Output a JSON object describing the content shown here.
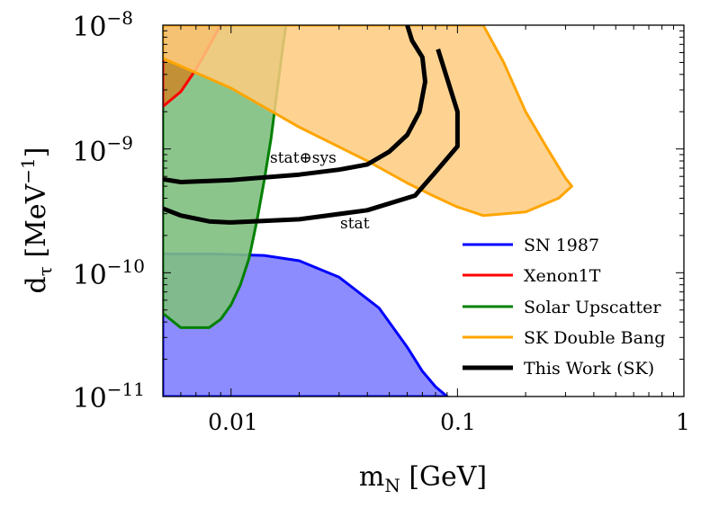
{
  "chart_data": {
    "type": "area",
    "xscale": "log",
    "yscale": "log",
    "xlim": [
      0.005,
      1
    ],
    "ylim": [
      1e-11,
      1e-08
    ],
    "xlabel": {
      "main": "m",
      "sub": "N",
      "unit": " [GeV]"
    },
    "ylabel": {
      "main": "d",
      "sub": "τ",
      "unit": " [MeV",
      "sup": "−1",
      "close": "]"
    },
    "x_ticks": [
      {
        "value": 0.01,
        "label": "0.01"
      },
      {
        "value": 0.1,
        "label": "0.1"
      },
      {
        "value": 1,
        "label": "1"
      }
    ],
    "y_ticks": [
      {
        "value": 1e-08,
        "base": "10",
        "exp": "−8"
      },
      {
        "value": 1e-09,
        "base": "10",
        "exp": "−9"
      },
      {
        "value": 1e-10,
        "base": "10",
        "exp": "−10"
      },
      {
        "value": 1e-11,
        "base": "10",
        "exp": "−11"
      }
    ],
    "legend_position": "bottom-right",
    "series": [
      {
        "name": "SN 1987",
        "kind": "region",
        "color": "#0000ff",
        "fill": "#7f7ffe",
        "points": [
          [
            0.005,
            1e-11
          ],
          [
            0.005,
            1.42e-10
          ],
          [
            0.008,
            1.42e-10
          ],
          [
            0.014,
            1.38e-10
          ],
          [
            0.02,
            1.25e-10
          ],
          [
            0.03,
            9.2e-11
          ],
          [
            0.045,
            5.2e-11
          ],
          [
            0.06,
            2.5e-11
          ],
          [
            0.07,
            1.6e-11
          ],
          [
            0.08,
            1.2e-11
          ],
          [
            0.09,
            1e-11
          ]
        ]
      },
      {
        "name": "Xenon1T",
        "kind": "region",
        "color": "#ff0000",
        "fill": "#c88a2c",
        "points": [
          [
            0.005,
            1e-08
          ],
          [
            0.005,
            2.2e-09
          ],
          [
            0.006,
            2.9e-09
          ],
          [
            0.007,
            4.4e-09
          ],
          [
            0.008,
            6.8e-09
          ],
          [
            0.009,
            1e-08
          ]
        ]
      },
      {
        "name": "Solar Upscatter",
        "kind": "region",
        "color": "#008000",
        "fill": "#7fbf7f",
        "points": [
          [
            0.005,
            1e-08
          ],
          [
            0.005,
            4.7e-11
          ],
          [
            0.006,
            3.6e-11
          ],
          [
            0.007,
            3.6e-11
          ],
          [
            0.008,
            3.6e-11
          ],
          [
            0.009,
            4.2e-11
          ],
          [
            0.01,
            5.5e-11
          ],
          [
            0.011,
            8e-11
          ],
          [
            0.012,
            1.3e-10
          ],
          [
            0.013,
            2.6e-10
          ],
          [
            0.014,
            5.5e-10
          ],
          [
            0.015,
            1.2e-09
          ],
          [
            0.016,
            3e-09
          ],
          [
            0.017,
            7e-09
          ],
          [
            0.0175,
            1e-08
          ]
        ]
      },
      {
        "name": "SK Double Bang",
        "kind": "region",
        "color": "#ffa500",
        "fill": "#fecb7f",
        "points": [
          [
            0.005,
            5.4e-09
          ],
          [
            0.01,
            3.1e-09
          ],
          [
            0.02,
            1.5e-09
          ],
          [
            0.04,
            8e-10
          ],
          [
            0.06,
            5.3e-10
          ],
          [
            0.08,
            4.1e-10
          ],
          [
            0.1,
            3.4e-10
          ],
          [
            0.13,
            2.9e-10
          ],
          [
            0.2,
            3.1e-10
          ],
          [
            0.28,
            4e-10
          ],
          [
            0.32,
            5e-10
          ],
          [
            0.3,
            5.8e-10
          ],
          [
            0.25,
            1e-09
          ],
          [
            0.2,
            2e-09
          ],
          [
            0.16,
            5e-09
          ],
          [
            0.13,
            1e-08
          ],
          [
            0.005,
            1e-08
          ]
        ]
      },
      {
        "name": "This Work (SK)",
        "kind": "line",
        "color": "#000000",
        "curves": [
          {
            "label": "stat⊕sys",
            "points": [
              [
                0.005,
                5.7e-10
              ],
              [
                0.006,
                5.4e-10
              ],
              [
                0.01,
                5.6e-10
              ],
              [
                0.02,
                6.2e-10
              ],
              [
                0.03,
                6.8e-10
              ],
              [
                0.04,
                7.5e-10
              ],
              [
                0.05,
                9.5e-10
              ],
              [
                0.06,
                1.3e-09
              ],
              [
                0.068,
                2e-09
              ],
              [
                0.072,
                3.5e-09
              ],
              [
                0.07,
                5.5e-09
              ],
              [
                0.063,
                7.5e-09
              ],
              [
                0.06,
                1e-08
              ]
            ]
          },
          {
            "label": "stat",
            "points": [
              [
                0.005,
                3.3e-10
              ],
              [
                0.006,
                2.9e-10
              ],
              [
                0.008,
                2.6e-10
              ],
              [
                0.01,
                2.55e-10
              ],
              [
                0.02,
                2.7e-10
              ],
              [
                0.04,
                3.2e-10
              ],
              [
                0.065,
                4.2e-10
              ],
              [
                0.08,
                6.5e-10
              ],
              [
                0.1,
                1.05e-09
              ],
              [
                0.1,
                2e-09
              ],
              [
                0.09,
                3.7e-09
              ],
              [
                0.082,
                6.4e-09
              ]
            ]
          }
        ]
      }
    ],
    "annotations": [
      {
        "text": "stat⊕sys",
        "x": 0.022,
        "y": 8.4e-10
      },
      {
        "text": "stat",
        "x": 0.038,
        "y": 2.15e-10
      }
    ]
  }
}
